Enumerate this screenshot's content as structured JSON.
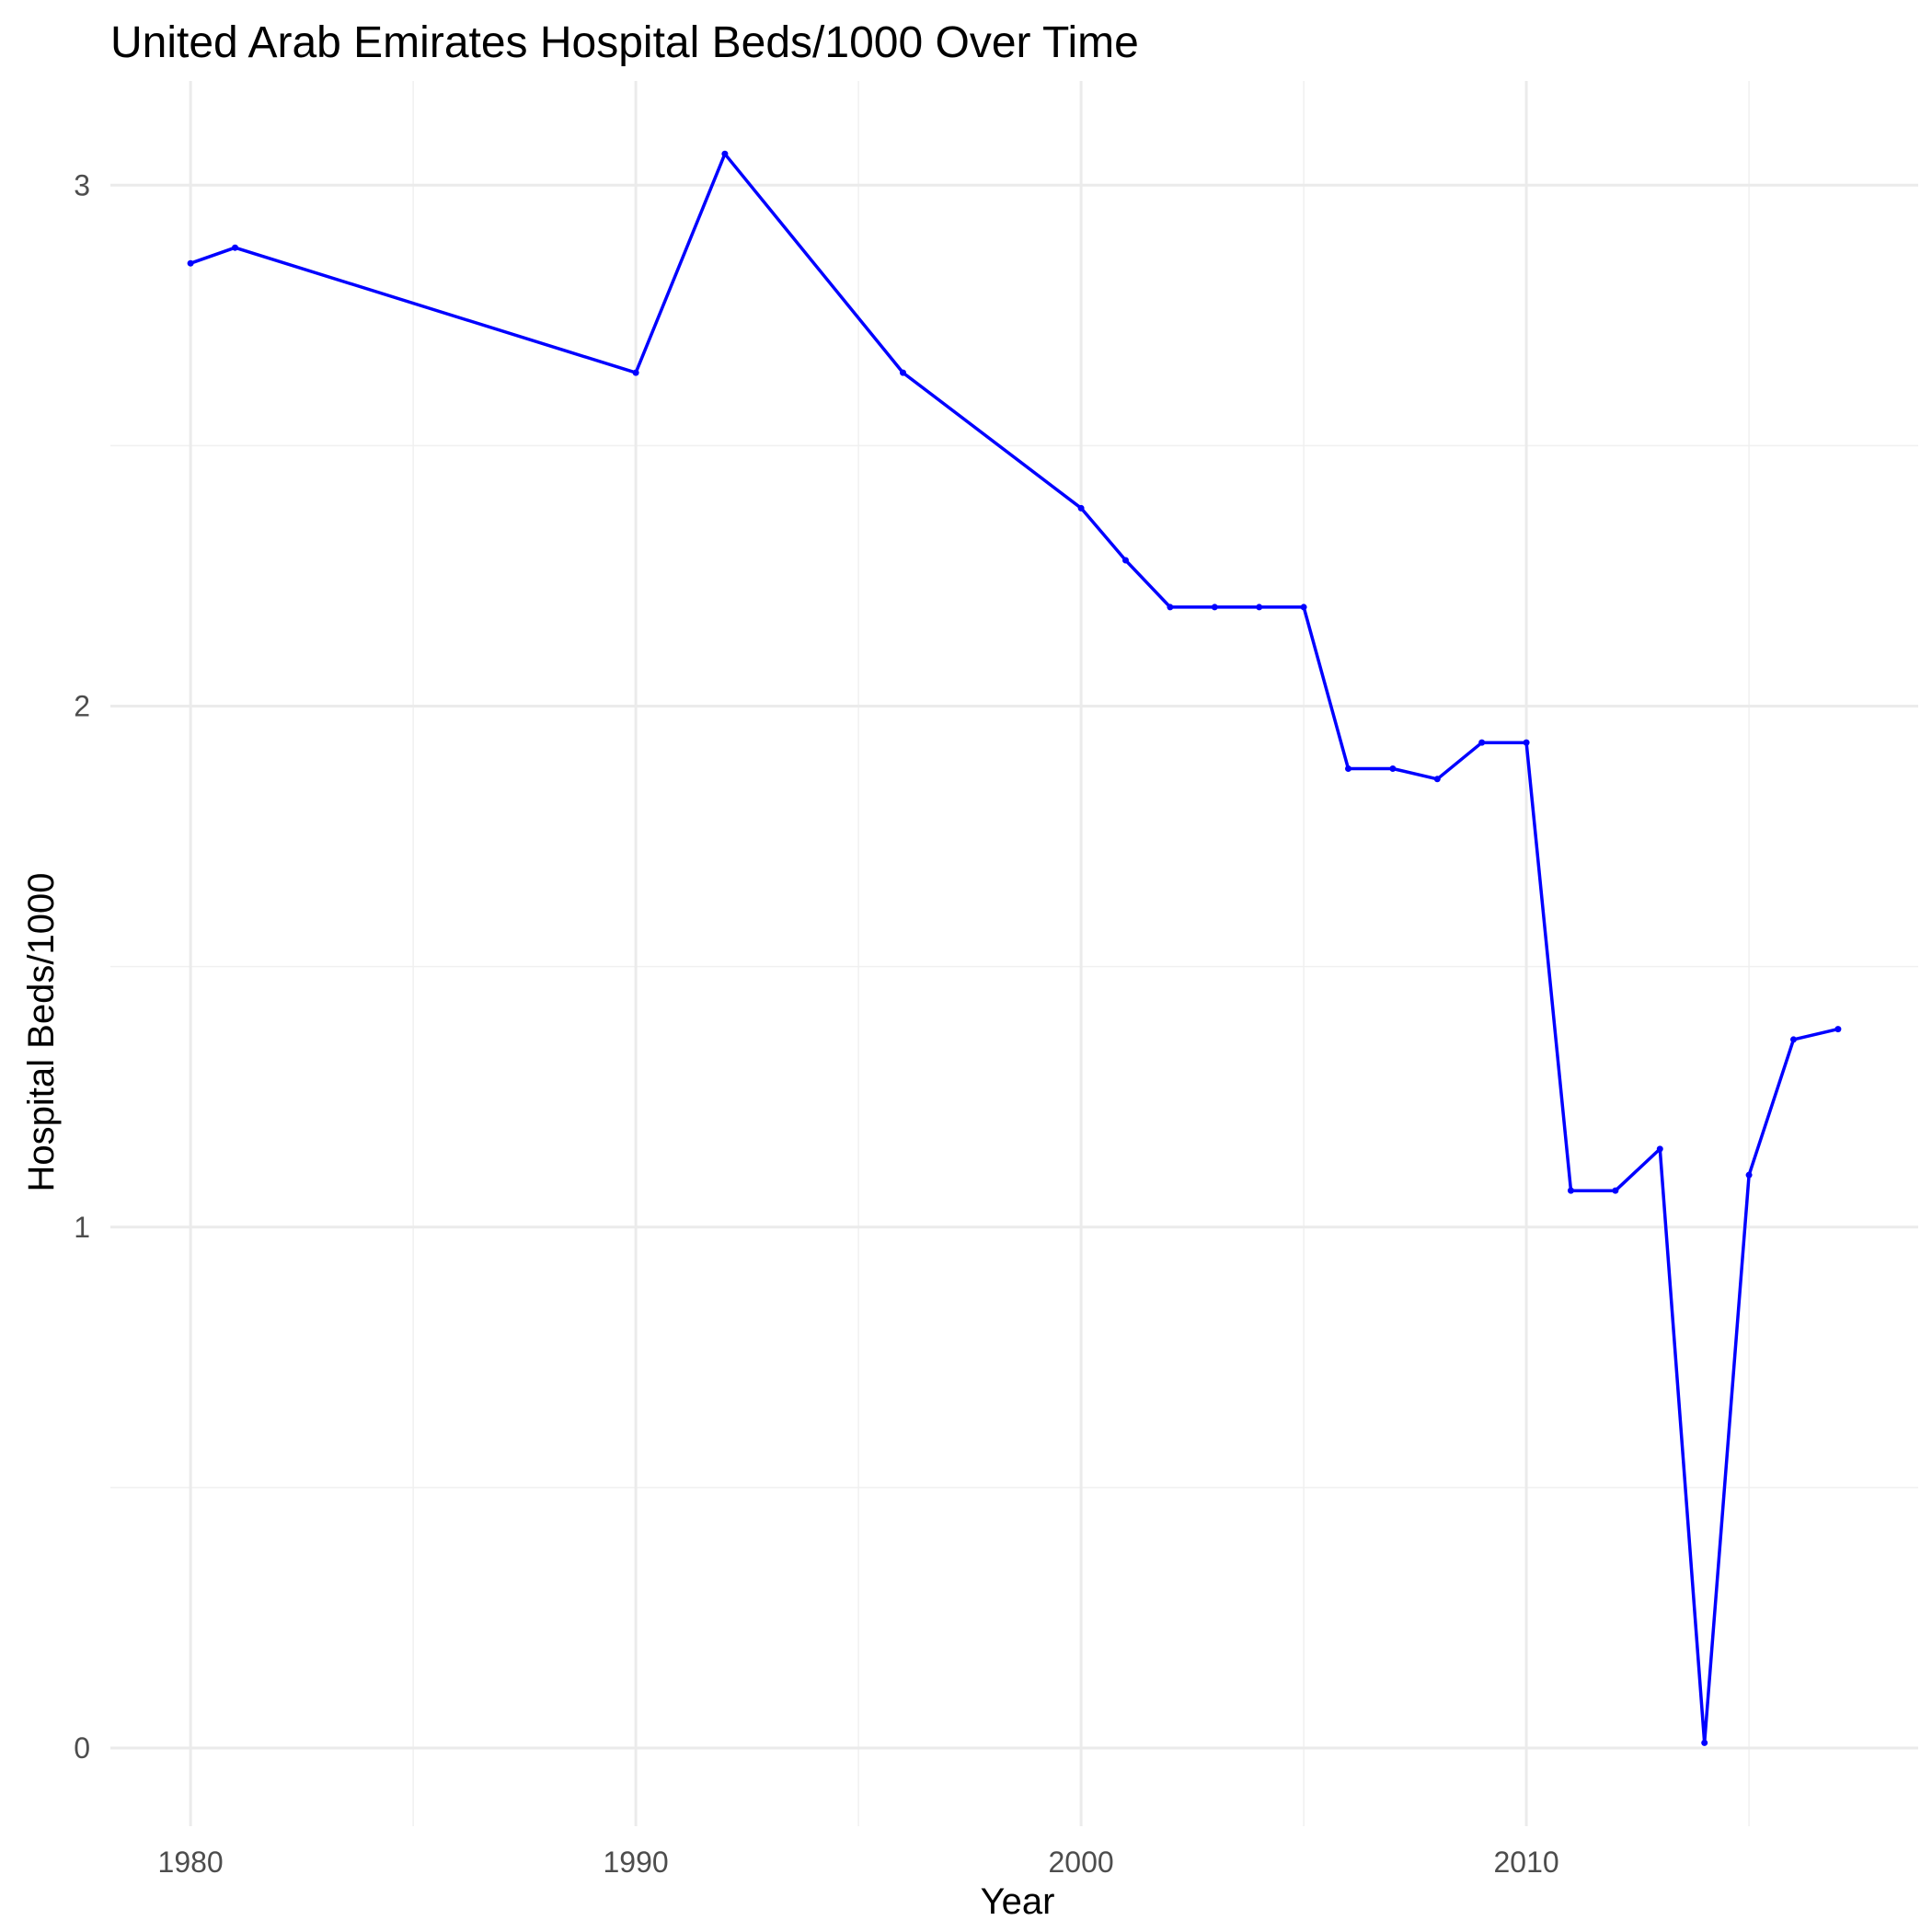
{
  "chart_data": {
    "type": "line",
    "title": "United Arab Emirates Hospital Beds/1000 Over Time",
    "xlabel": "Year",
    "ylabel": "Hospital Beds/1000",
    "xlim": [
      1978.2,
      2018.8
    ],
    "ylim": [
      -0.15,
      3.2
    ],
    "x_ticks": [
      1980,
      1990,
      2000,
      2010
    ],
    "x_tick_labels": [
      "1980",
      "1990",
      "2000",
      "2010"
    ],
    "x_minor_ticks": [
      1985,
      1995,
      2005,
      2015
    ],
    "y_ticks": [
      0,
      1,
      2,
      3
    ],
    "y_tick_labels": [
      "0",
      "1",
      "2",
      "3"
    ],
    "y_minor_ticks": [
      0.5,
      1.5,
      2.5
    ],
    "grid": true,
    "series": [
      {
        "color": "#0000ff",
        "points": [
          {
            "x": 1980,
            "y": 2.85
          },
          {
            "x": 1981,
            "y": 2.88
          },
          {
            "x": 1990,
            "y": 2.64
          },
          {
            "x": 1992,
            "y": 3.06
          },
          {
            "x": 1996,
            "y": 2.64
          },
          {
            "x": 2000,
            "y": 2.38
          },
          {
            "x": 2001,
            "y": 2.28
          },
          {
            "x": 2002,
            "y": 2.19
          },
          {
            "x": 2003,
            "y": 2.19
          },
          {
            "x": 2004,
            "y": 2.19
          },
          {
            "x": 2005,
            "y": 2.19
          },
          {
            "x": 2006,
            "y": 1.88
          },
          {
            "x": 2007,
            "y": 1.88
          },
          {
            "x": 2008,
            "y": 1.86
          },
          {
            "x": 2009,
            "y": 1.93
          },
          {
            "x": 2010,
            "y": 1.93
          },
          {
            "x": 2011,
            "y": 1.07
          },
          {
            "x": 2012,
            "y": 1.07
          },
          {
            "x": 2013,
            "y": 1.15
          },
          {
            "x": 2014,
            "y": 0.01
          },
          {
            "x": 2015,
            "y": 1.1
          },
          {
            "x": 2016,
            "y": 1.36
          },
          {
            "x": 2017,
            "y": 1.38
          }
        ]
      }
    ]
  }
}
